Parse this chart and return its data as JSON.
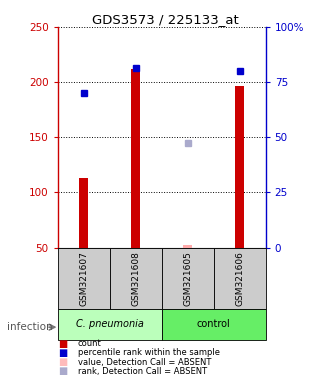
{
  "title": "GDS3573 / 225133_at",
  "samples": [
    "GSM321607",
    "GSM321608",
    "GSM321605",
    "GSM321606"
  ],
  "bar_values": [
    113,
    212,
    52,
    196
  ],
  "bar_colors": [
    "#cc0000",
    "#cc0000",
    "#ffaaaa",
    "#cc0000"
  ],
  "rank_values": [
    190,
    213,
    145,
    210
  ],
  "rank_colors": [
    "#0000cc",
    "#0000cc",
    "#aaaacc",
    "#0000cc"
  ],
  "rank_markers": [
    "s",
    "s",
    "s",
    "s"
  ],
  "ylim_left": [
    50,
    250
  ],
  "ylim_right": [
    0,
    100
  ],
  "yticks_left": [
    50,
    100,
    150,
    200,
    250
  ],
  "yticks_right": [
    0,
    25,
    50,
    75,
    100
  ],
  "ytick_labels_right": [
    "0",
    "25",
    "50",
    "75",
    "100%"
  ],
  "sample_bg_color": "#cccccc",
  "group1_color": "#bbffbb",
  "group2_color": "#66ee66",
  "legend_items": [
    {
      "color": "#cc0000",
      "label": "count"
    },
    {
      "color": "#0000cc",
      "label": "percentile rank within the sample"
    },
    {
      "color": "#ffbbbb",
      "label": "value, Detection Call = ABSENT"
    },
    {
      "color": "#aaaacc",
      "label": "rank, Detection Call = ABSENT"
    }
  ]
}
